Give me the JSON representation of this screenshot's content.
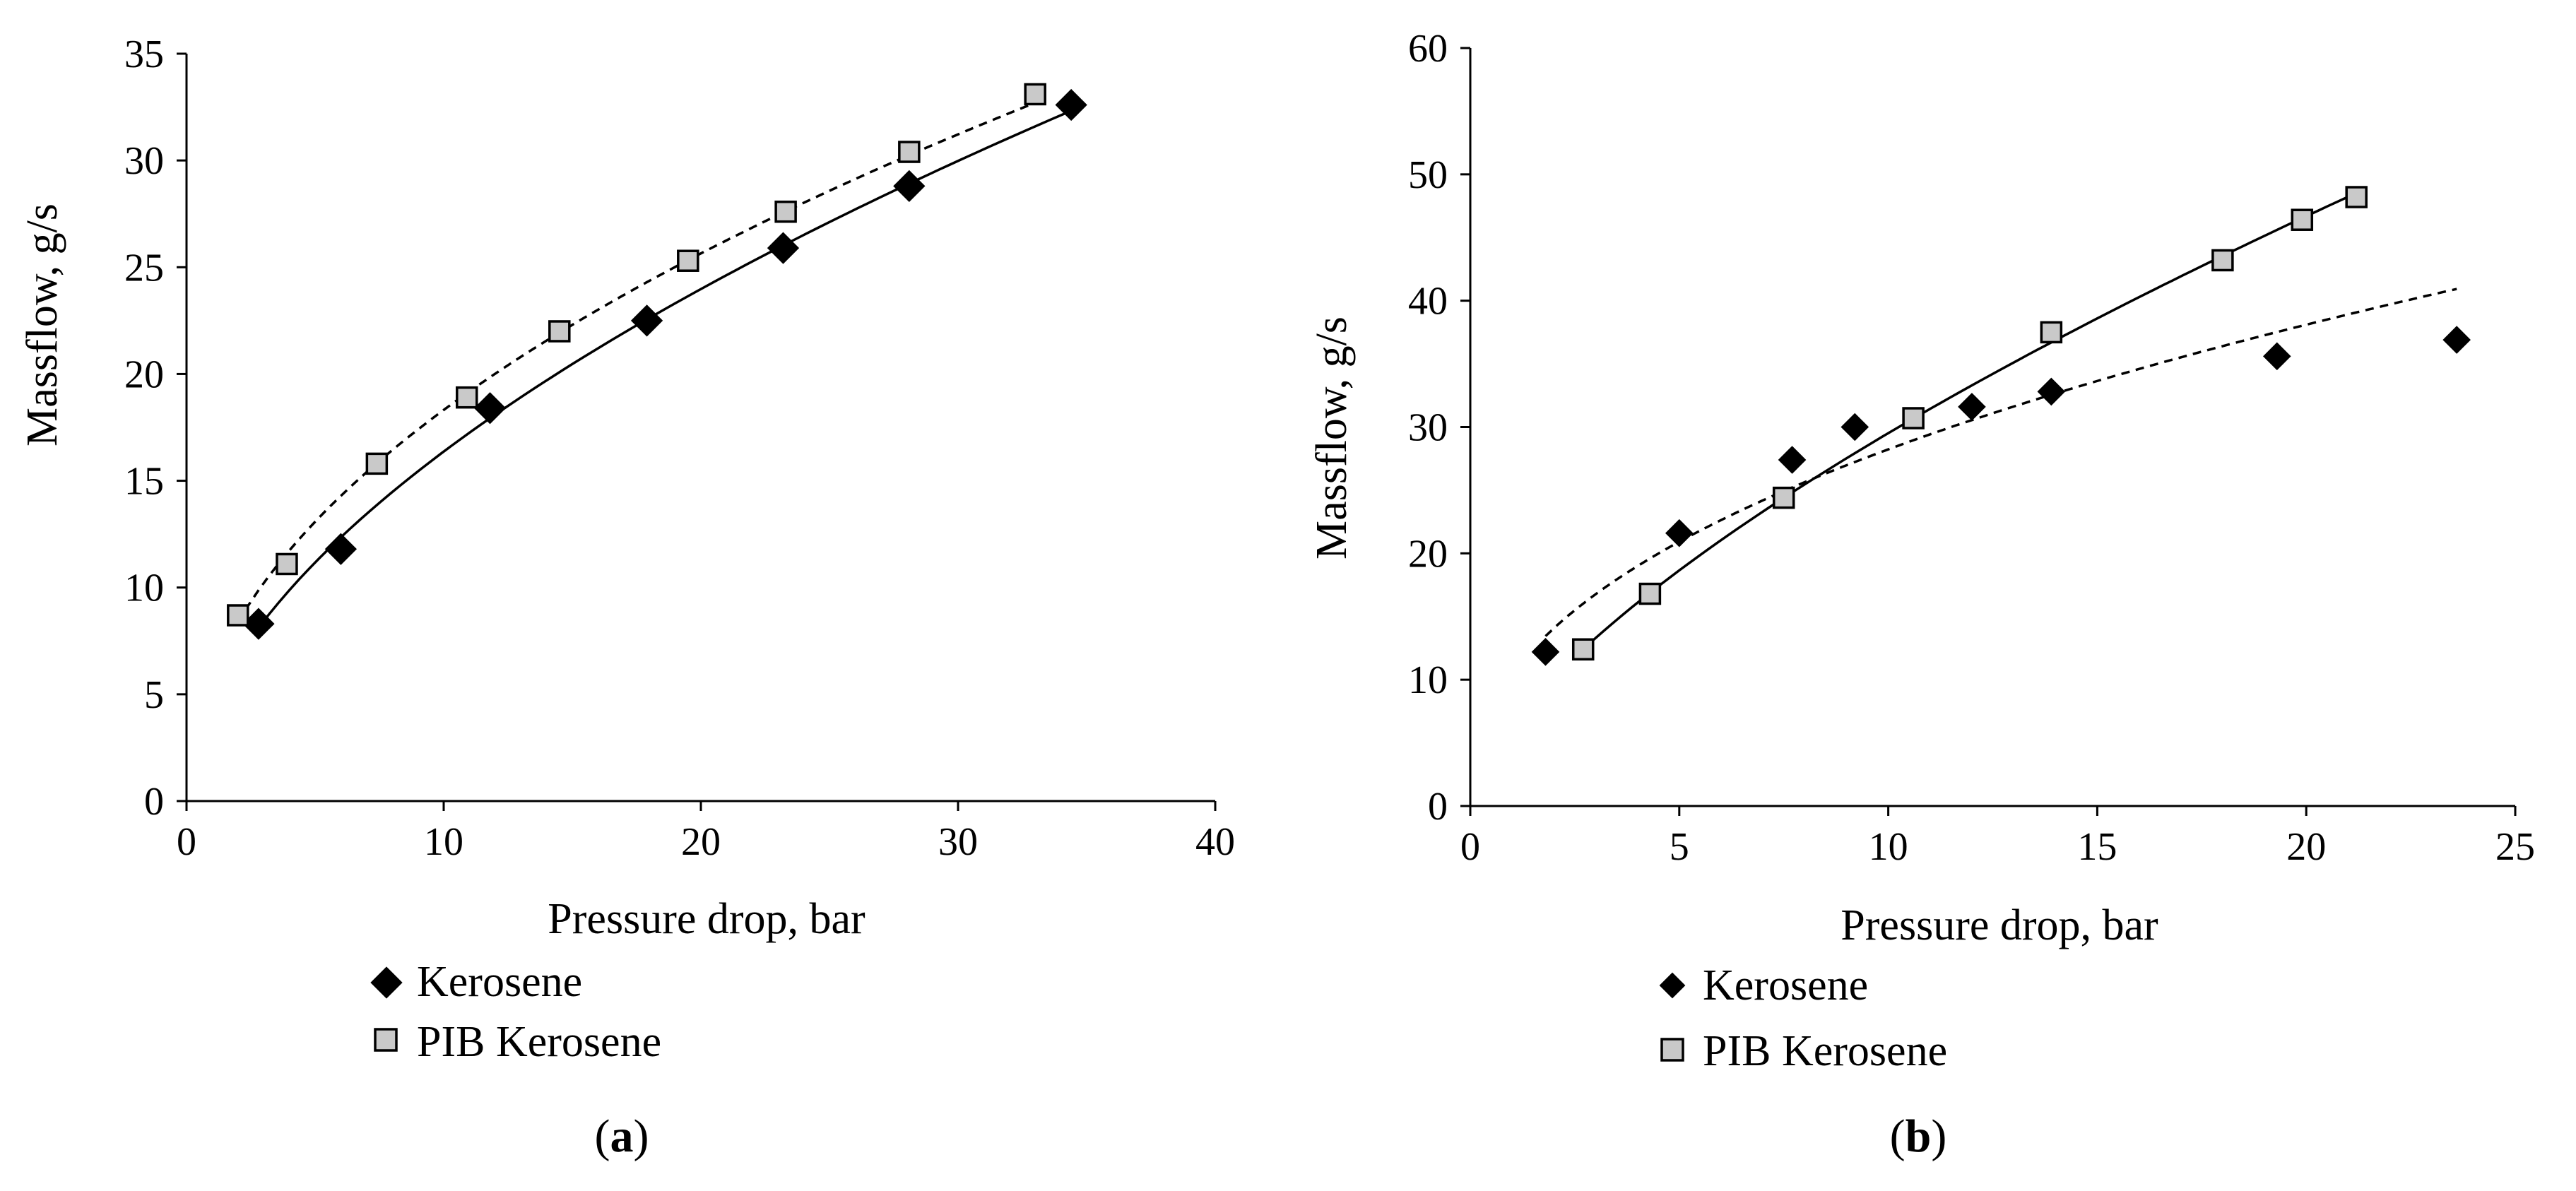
{
  "chart_data": [
    {
      "type": "scatter",
      "panel": "a",
      "caption": "(a)",
      "caption_letter": "a",
      "xlabel": "Pressure drop, bar",
      "ylabel": "Massflow, g/s",
      "xlim": [
        0,
        40
      ],
      "ylim": [
        0,
        35
      ],
      "xticks": [
        0,
        10,
        20,
        30,
        40
      ],
      "yticks": [
        0,
        5,
        10,
        15,
        20,
        25,
        30,
        35
      ],
      "legend_position": "below",
      "grid": false,
      "series": [
        {
          "name": "Kerosene",
          "marker": "diamond",
          "fit": "solid",
          "x": [
            2.8,
            6.0,
            11.8,
            17.9,
            23.2,
            28.1,
            34.4
          ],
          "y": [
            8.3,
            11.8,
            18.4,
            22.5,
            25.9,
            28.8,
            32.6
          ]
        },
        {
          "name": "PIB Kerosene",
          "marker": "square",
          "fit": "dashed",
          "x": [
            2.0,
            3.9,
            7.4,
            10.9,
            14.5,
            19.5,
            23.3,
            28.1,
            33.0
          ],
          "y": [
            8.7,
            11.1,
            15.8,
            18.9,
            22.0,
            25.3,
            27.6,
            30.4,
            33.1
          ]
        }
      ]
    },
    {
      "type": "scatter",
      "panel": "b",
      "caption": "(b)",
      "caption_letter": "b",
      "xlabel": "Pressure drop, bar",
      "ylabel": "Massflow, g/s",
      "xlim": [
        0,
        25
      ],
      "ylim": [
        0,
        60
      ],
      "xticks": [
        0,
        5,
        10,
        15,
        20,
        25
      ],
      "yticks": [
        0,
        10,
        20,
        30,
        40,
        50,
        60
      ],
      "legend_position": "below",
      "grid": false,
      "series": [
        {
          "name": "Kerosene",
          "marker": "diamond",
          "fit": "dashed",
          "x": [
            1.8,
            5.0,
            7.7,
            9.2,
            12.0,
            13.9,
            19.3,
            23.6
          ],
          "y": [
            12.2,
            21.6,
            27.4,
            30.0,
            31.6,
            32.8,
            35.6,
            36.9
          ]
        },
        {
          "name": "PIB Kerosene",
          "marker": "square",
          "fit": "solid",
          "x": [
            2.7,
            4.3,
            7.5,
            10.6,
            13.9,
            18.0,
            19.9,
            21.2
          ],
          "y": [
            12.4,
            16.8,
            24.4,
            30.7,
            37.5,
            43.2,
            46.4,
            48.2
          ]
        }
      ]
    }
  ]
}
